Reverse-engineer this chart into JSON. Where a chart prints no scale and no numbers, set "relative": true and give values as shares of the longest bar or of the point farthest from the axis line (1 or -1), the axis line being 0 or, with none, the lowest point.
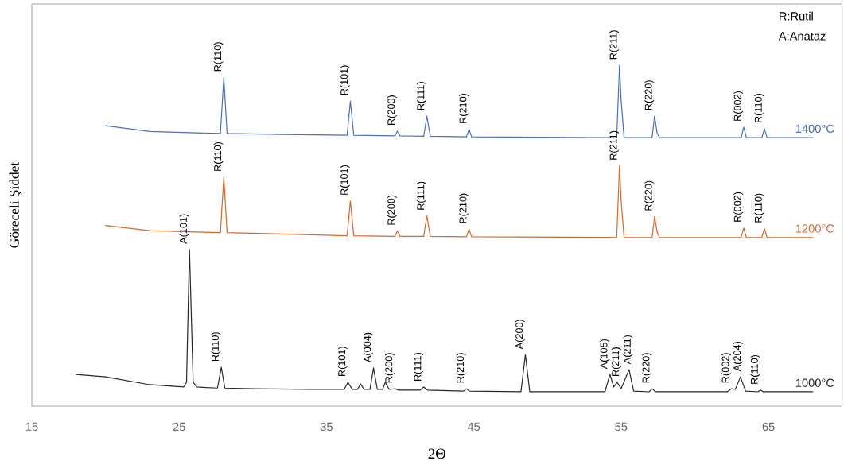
{
  "chart_data": {
    "type": "line",
    "relative": true,
    "xlabel": "2Θ",
    "ylabel": "Göreceli Şiddet",
    "xlim": [
      15,
      70
    ],
    "xticks": [
      15,
      25,
      35,
      45,
      55,
      65
    ],
    "grid": false,
    "tick_labels": "x",
    "series": [
      {
        "name": "1400°C",
        "color": "#4a70b8",
        "x": [
          20.0,
          23,
          27.8,
          28.03,
          28.25,
          32,
          36.4,
          36.62,
          36.85,
          39.65,
          39.81,
          40.0,
          41.6,
          41.81,
          42.05,
          44.5,
          44.68,
          44.85,
          54.7,
          54.89,
          55.0,
          55.2,
          57.1,
          57.27,
          57.45,
          57.6,
          63.15,
          63.32,
          63.5,
          64.55,
          64.73,
          64.9,
          68.0
        ],
        "values": [
          0.823,
          0.806,
          0.8,
          0.965,
          0.8,
          0.797,
          0.795,
          0.895,
          0.795,
          0.793,
          0.807,
          0.793,
          0.792,
          0.851,
          0.792,
          0.79,
          0.812,
          0.79,
          0.788,
          1.0,
          0.898,
          0.788,
          0.788,
          0.851,
          0.8,
          0.788,
          0.788,
          0.819,
          0.788,
          0.788,
          0.814,
          0.788,
          0.788
        ]
      },
      {
        "name": "1200°C",
        "color": "#d4692c",
        "x": [
          20.0,
          23,
          27.8,
          28.03,
          28.25,
          32,
          36.4,
          36.62,
          36.85,
          39.65,
          39.81,
          40.0,
          41.6,
          41.81,
          42.05,
          44.5,
          44.68,
          44.85,
          54.7,
          54.89,
          55.0,
          55.2,
          57.1,
          57.27,
          57.45,
          57.6,
          63.15,
          63.32,
          63.5,
          64.55,
          64.73,
          64.9,
          68.0
        ],
        "values": [
          0.53,
          0.515,
          0.509,
          0.672,
          0.509,
          0.505,
          0.5,
          0.602,
          0.5,
          0.498,
          0.514,
          0.498,
          0.498,
          0.558,
          0.498,
          0.497,
          0.519,
          0.497,
          0.495,
          0.705,
          0.602,
          0.495,
          0.495,
          0.556,
          0.51,
          0.495,
          0.495,
          0.523,
          0.495,
          0.495,
          0.521,
          0.495,
          0.495
        ]
      },
      {
        "name": "1000°C",
        "color": "#262626",
        "x": [
          18.0,
          20,
          23,
          25.3,
          25.5,
          25.7,
          25.95,
          26.2,
          27.6,
          27.86,
          28.1,
          30,
          34,
          36.2,
          36.46,
          36.75,
          37.1,
          37.32,
          37.55,
          37.95,
          38.19,
          38.45,
          38.8,
          39.0,
          39.25,
          39.65,
          39.9,
          41.35,
          41.6,
          41.85,
          44.3,
          44.5,
          44.7,
          48.2,
          48.5,
          48.8,
          53.9,
          54.24,
          54.5,
          54.73,
          55.0,
          55.54,
          55.85,
          56.9,
          57.1,
          57.35,
          62.2,
          62.5,
          62.75,
          63.1,
          63.45,
          64.3,
          64.46,
          64.65,
          68.0
        ],
        "values": [
          0.093,
          0.086,
          0.063,
          0.056,
          0.07,
          0.46,
          0.07,
          0.056,
          0.053,
          0.114,
          0.053,
          0.051,
          0.049,
          0.049,
          0.07,
          0.049,
          0.049,
          0.065,
          0.049,
          0.049,
          0.112,
          0.049,
          0.049,
          0.07,
          0.049,
          0.051,
          0.047,
          0.047,
          0.056,
          0.047,
          0.044,
          0.051,
          0.044,
          0.042,
          0.151,
          0.042,
          0.042,
          0.093,
          0.056,
          0.07,
          0.051,
          0.107,
          0.044,
          0.042,
          0.051,
          0.042,
          0.042,
          0.051,
          0.049,
          0.086,
          0.044,
          0.042,
          0.047,
          0.042,
          0.042
        ]
      }
    ],
    "annotations": [
      "R:Rutil",
      "A:Anataz",
      {
        "text": "R(110)",
        "x": 28.03,
        "y": 0.965
      },
      {
        "text": "R(101)",
        "x": 36.62,
        "y": 0.895
      },
      {
        "text": "R(200)",
        "x": 39.81,
        "y": 0.807
      },
      {
        "text": "R(111)",
        "x": 41.81,
        "y": 0.851
      },
      {
        "text": "R(210)",
        "x": 44.68,
        "y": 0.812
      },
      {
        "text": "R(211)",
        "x": 54.89,
        "y": 1.0
      },
      {
        "text": "R(220)",
        "x": 57.27,
        "y": 0.851
      },
      {
        "text": "R(002)",
        "x": 63.32,
        "y": 0.819
      },
      {
        "text": "R(110)",
        "x": 64.73,
        "y": 0.814
      },
      {
        "text": "R(110)",
        "x": 28.03,
        "y": 0.672
      },
      {
        "text": "R(101)",
        "x": 36.62,
        "y": 0.602
      },
      {
        "text": "R(200)",
        "x": 39.81,
        "y": 0.514
      },
      {
        "text": "R(111)",
        "x": 41.81,
        "y": 0.558
      },
      {
        "text": "R(210)",
        "x": 44.68,
        "y": 0.519
      },
      {
        "text": "R(211)",
        "x": 54.89,
        "y": 0.705
      },
      {
        "text": "R(220)",
        "x": 57.27,
        "y": 0.556
      },
      {
        "text": "R(002)",
        "x": 63.32,
        "y": 0.523
      },
      {
        "text": "R(110)",
        "x": 64.73,
        "y": 0.521
      },
      {
        "text": "A(101)",
        "x": 25.7,
        "y": 0.46
      },
      {
        "text": "R(110)",
        "x": 27.86,
        "y": 0.114
      },
      {
        "text": "R(101)",
        "x": 36.46,
        "y": 0.07
      },
      {
        "text": "A(004)",
        "x": 38.19,
        "y": 0.112
      },
      {
        "text": "R(200)",
        "x": 39.65,
        "y": 0.051
      },
      {
        "text": "R(111)",
        "x": 41.6,
        "y": 0.056
      },
      {
        "text": "R(210)",
        "x": 44.5,
        "y": 0.051
      },
      {
        "text": "A(200)",
        "x": 48.5,
        "y": 0.151
      },
      {
        "text": "A(105)",
        "x": 54.24,
        "y": 0.093
      },
      {
        "text": "R(211)",
        "x": 54.73,
        "y": 0.07
      },
      {
        "text": "A(211)",
        "x": 55.54,
        "y": 0.107
      },
      {
        "text": "R(220)",
        "x": 57.1,
        "y": 0.051
      },
      {
        "text": "R(002)",
        "x": 62.5,
        "y": 0.051
      },
      {
        "text": "A(204)",
        "x": 63.1,
        "y": 0.086
      },
      {
        "text": "R(110)",
        "x": 64.46,
        "y": 0.047
      }
    ]
  }
}
